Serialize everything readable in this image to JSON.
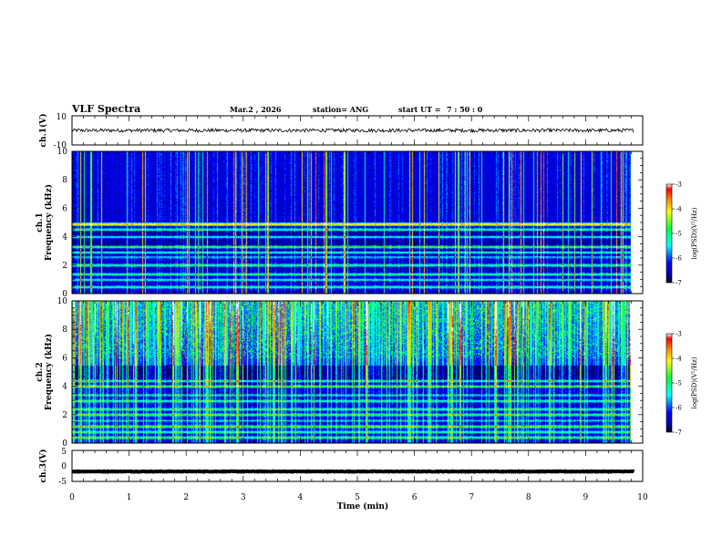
{
  "header": {
    "title": "VLF Spectra",
    "date": "Mar.2 , 2026",
    "station": "station= ANG",
    "start_label": "start UT =",
    "start_time": "7 : 50 : 0"
  },
  "chart_data": {
    "type": "heatmap",
    "title": "VLF Spectra",
    "xlabel": "Time (min)",
    "xlim": [
      0,
      10
    ],
    "x_ticks": [
      "0",
      "1",
      "2",
      "3",
      "4",
      "5",
      "6",
      "7",
      "8",
      "9",
      "10"
    ],
    "data_end_min": 9.85,
    "panels": [
      {
        "id": "ch1-waveform",
        "kind": "waveform",
        "ylabel": "ch.1(V)",
        "ylim": [
          -10,
          10
        ],
        "y_ticks": [
          "10",
          "-10"
        ],
        "level": 0,
        "amplitude": 1.2
      },
      {
        "id": "ch1-spectrogram",
        "kind": "spectrogram",
        "ylabel_line1": "ch.1",
        "ylabel_line2": "Frequency (kHz)",
        "ylim": [
          0,
          10
        ],
        "y_ticks": [
          "0",
          "2",
          "4",
          "6",
          "8",
          "10"
        ],
        "colorbar": {
          "label": "log(PSD)(V²/Hz)",
          "range": [
            -7,
            -3
          ],
          "ticks": [
            "-3",
            "-4",
            "-5",
            "-6",
            "-7"
          ]
        }
      },
      {
        "id": "ch2-spectrogram",
        "kind": "spectrogram",
        "ylabel_line1": "ch.2",
        "ylabel_line2": "Frequency (kHz)",
        "ylim": [
          0,
          10
        ],
        "y_ticks": [
          "0",
          "2",
          "4",
          "6",
          "8",
          "10"
        ],
        "colorbar": {
          "label": "log(PSD)(V²/Hz)",
          "range": [
            -7,
            -3
          ],
          "ticks": [
            "-3",
            "-4",
            "-5",
            "-6",
            "-7"
          ]
        }
      },
      {
        "id": "ch3-waveform",
        "kind": "waveform",
        "ylabel": "ch.3(V)",
        "ylim": [
          -5,
          5
        ],
        "y_ticks": [
          "5",
          "0",
          "-5"
        ],
        "level": -1.8,
        "amplitude": 0.1
      }
    ]
  }
}
